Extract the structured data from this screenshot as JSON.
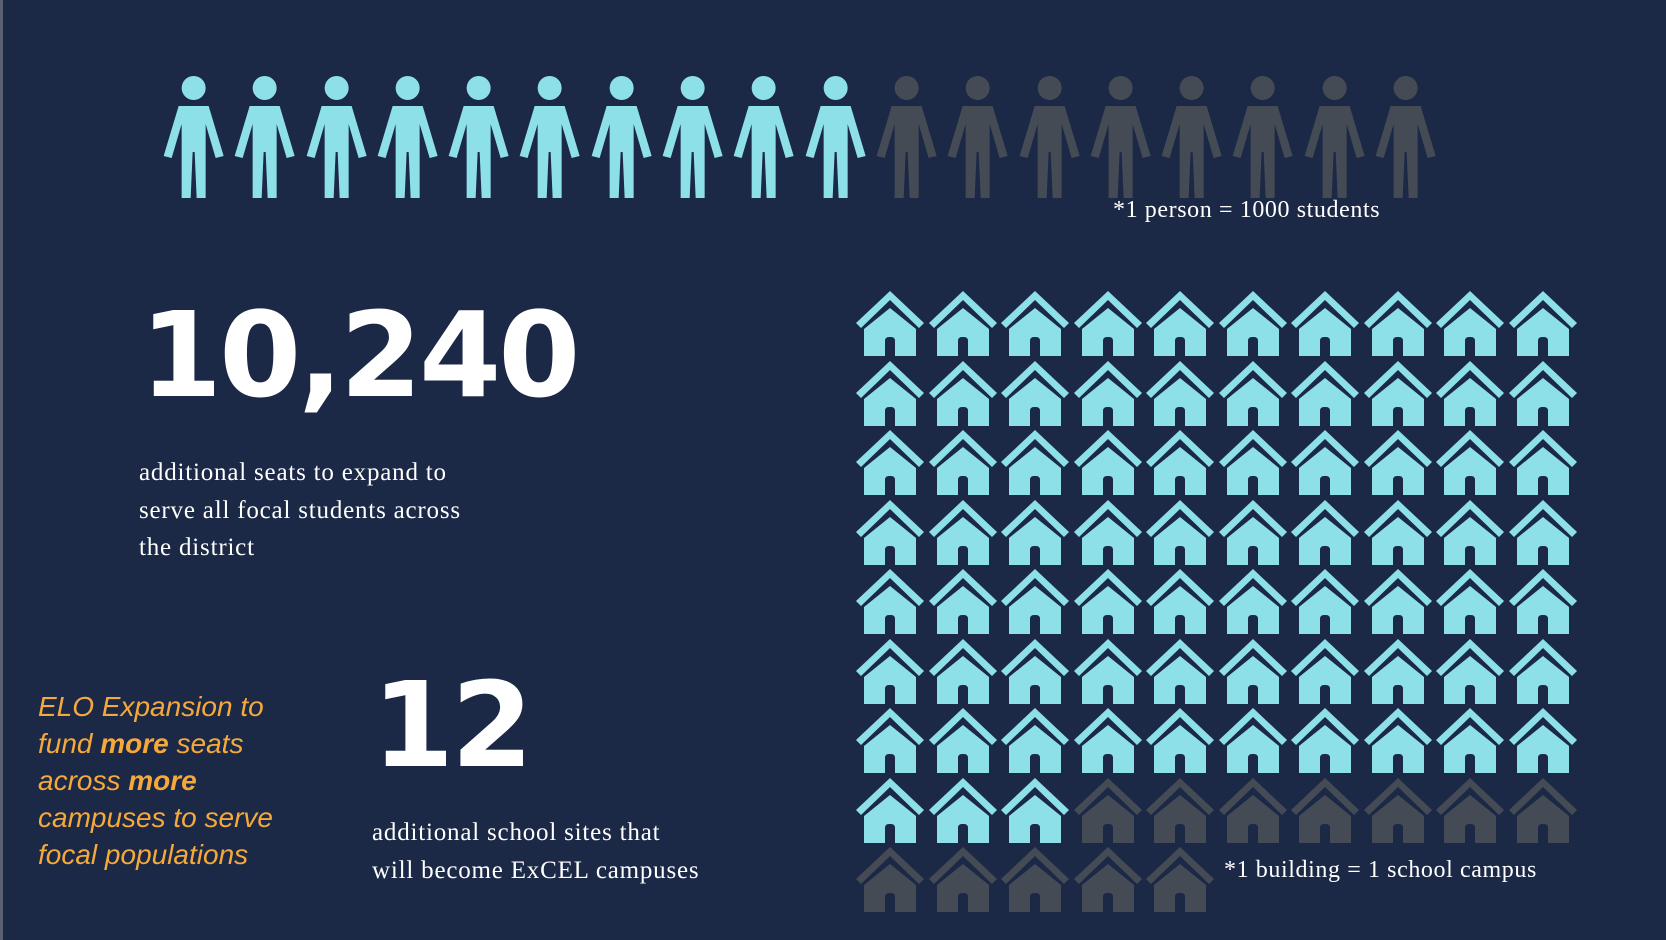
{
  "colors": {
    "background": "#1b2846",
    "filled": "#8ee0e8",
    "unfilled": "#454b55",
    "callout": "#f5a93b",
    "text": "#ffffff"
  },
  "people": {
    "icon": "person-icon",
    "total": 18,
    "filled": 10,
    "note": "*1 person = 1000 students"
  },
  "seats": {
    "number": "10,240",
    "desc_lines": [
      "additional seats to expand to",
      "serve all focal students across",
      "the district"
    ]
  },
  "sites": {
    "number": "12",
    "desc_lines": [
      "additional school sites that",
      "will become ExCEL campuses"
    ]
  },
  "callout": {
    "p1": "ELO Expansion to fund ",
    "b1": "more",
    "p2": " seats across ",
    "b2": "more",
    "p3": " campuses to serve focal populations"
  },
  "buildings": {
    "icon": "house-icon",
    "total": 85,
    "filled": 73,
    "note": "*1 building = 1 school campus"
  }
}
